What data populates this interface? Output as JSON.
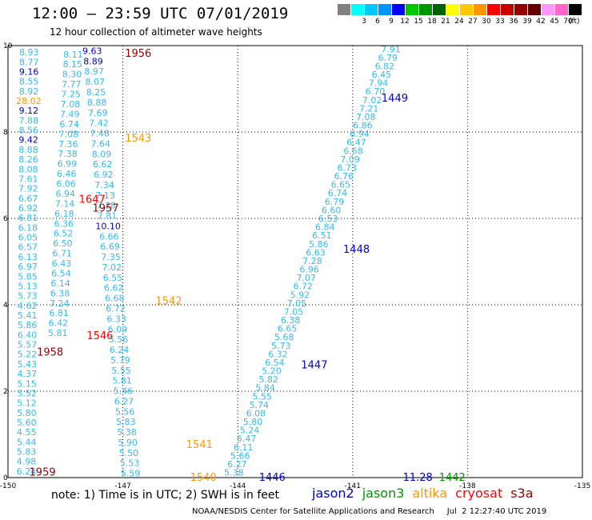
{
  "header": {
    "title": "12:00 – 23:59 UTC 07/01/2019",
    "subtitle": "12 hour collection of altimeter wave heights",
    "unit_label": "(ft)"
  },
  "color_legend": [
    {
      "label": "",
      "color": "#808080"
    },
    {
      "label": "3",
      "color": "#00ffff"
    },
    {
      "label": "6",
      "color": "#00c8ff"
    },
    {
      "label": "9",
      "color": "#0096ff"
    },
    {
      "label": "12",
      "color": "#0000ff"
    },
    {
      "label": "15",
      "color": "#00c800"
    },
    {
      "label": "18",
      "color": "#009600"
    },
    {
      "label": "21",
      "color": "#006400"
    },
    {
      "label": "24",
      "color": "#ffff00"
    },
    {
      "label": "27",
      "color": "#ffc800"
    },
    {
      "label": "30",
      "color": "#ff9600"
    },
    {
      "label": "33",
      "color": "#ff0000"
    },
    {
      "label": "36",
      "color": "#c80000"
    },
    {
      "label": "39",
      "color": "#960000"
    },
    {
      "label": "42",
      "color": "#640000"
    },
    {
      "label": "45",
      "color": "#ff96ff"
    },
    {
      "label": "70",
      "color": "#ff64c8"
    },
    {
      "label": "",
      "color": "#000000"
    }
  ],
  "footer": {
    "note": "note:  1) Time is in UTC;  2) SWH is in feet",
    "satellites": [
      {
        "name": "jason2",
        "color": "#0000cc"
      },
      {
        "name": "jason3",
        "color": "#009600"
      },
      {
        "name": "altika",
        "color": "#ff9600"
      },
      {
        "name": "cryosat",
        "color": "#ff0000"
      },
      {
        "name": "s3a",
        "color": "#960000"
      }
    ],
    "credit": "NOAA/NESDIS Center for Satellite Applications and Research     Jul  2 12:27:40 UTC 2019"
  },
  "chart_data": {
    "type": "scatter",
    "xlim": [
      -150,
      -135
    ],
    "ylim": [
      0,
      10
    ],
    "x_ticks": [
      -150,
      -147,
      -144,
      -141,
      -138,
      -135
    ],
    "y_ticks": [
      0,
      2,
      4,
      6,
      8,
      10
    ],
    "grid": true,
    "color": "#33bbee",
    "tracks": [
      {
        "name": "track-A",
        "start": [
          -149.45,
          9.85
        ],
        "end": [
          -149.52,
          0.15
        ],
        "values": [
          "8.93",
          "8.77",
          "9.16",
          "8.55",
          "8.92",
          "28.02",
          "9.12",
          "7.88",
          "8.56",
          "9.42",
          "8.88",
          "8.26",
          "8.08",
          "7.61",
          "7.92",
          "6.67",
          "6.92",
          "6.81",
          "6.18",
          "6.05",
          "6.57",
          "6.13",
          "6.97",
          "5.85",
          "5.13",
          "5.73",
          "4.62",
          "5.41",
          "5.86",
          "6.40",
          "5.57",
          "5.22",
          "5.43",
          "4.37",
          "5.15",
          "5.52",
          "5.12",
          "5.80",
          "5.60",
          "4.55",
          "5.44",
          "5.83",
          "4.98",
          "6.24"
        ],
        "special": {
          "9.16": "#0000cc",
          "28.02": "#ff9600",
          "9.12": "#0000cc",
          "9.42": "#0000cc"
        }
      },
      {
        "name": "track-B",
        "start": [
          -148.3,
          9.8
        ],
        "end": [
          -148.7,
          3.35
        ],
        "values": [
          "8.11",
          "8.15",
          "8.30",
          "7.77",
          "7.25",
          "7.08",
          "7.49",
          "6.74",
          "7.08",
          "7.36",
          "7.38",
          "6.99",
          "6.46",
          "6.06",
          "6.94",
          "7.14",
          "6.18",
          "6.36",
          "6.52",
          "6.50",
          "6.71",
          "6.43",
          "6.54",
          "6.14",
          "6.38",
          "7.24",
          "6.81",
          "6.42",
          "5.81"
        ],
        "special": {}
      },
      {
        "name": "track-C",
        "start": [
          -147.8,
          9.88
        ],
        "end": [
          -146.8,
          0.1
        ],
        "values": [
          "9.63",
          "8.89",
          "8.97",
          "8.07",
          "8.25",
          "8.88",
          "7.69",
          "7.42",
          "7.48",
          "7.64",
          "8.09",
          "6.62",
          "6.92",
          "7.34",
          "7.13",
          "7.28",
          "7.81",
          "10.10",
          "6.66",
          "6.69",
          "7.35",
          "7.02",
          "6.55",
          "6.62",
          "6.68",
          "6.72",
          "6.33",
          "6.09",
          "5.56",
          "6.24",
          "5.79",
          "5.55",
          "5.81",
          "5.46",
          "6.27",
          "5.56",
          "5.83",
          "5.38",
          "5.90",
          "5.50",
          "5.53",
          "5.59"
        ],
        "special": {
          "9.63": "#0000cc",
          "8.89": "#0000cc",
          "10.10": "#0000cc"
        }
      },
      {
        "name": "track-D",
        "start": [
          -140.0,
          9.92
        ],
        "end": [
          -144.1,
          0.12
        ],
        "values": [
          "7.91",
          "6.79",
          "6.82",
          "6.45",
          "7.94",
          "6.70",
          "7.02",
          "7.21",
          "7.08",
          "6.86",
          "6.94",
          "6.47",
          "6.68",
          "7.09",
          "6.73",
          "6.76",
          "6.65",
          "6.74",
          "6.79",
          "6.60",
          "6.53",
          "6.84",
          "6.51",
          "5.86",
          "6.63",
          "7.28",
          "6.96",
          "7.07",
          "6.72",
          "5.92",
          "7.05",
          "7.05",
          "6.38",
          "6.65",
          "5.68",
          "5.73",
          "6.32",
          "6.54",
          "5.20",
          "5.82",
          "5.84",
          "5.55",
          "5.74",
          "6.08",
          "5.80",
          "5.24",
          "6.47",
          "6.11",
          "5.66",
          "6.27",
          "5.38"
        ],
        "special": {}
      }
    ],
    "pass_labels": [
      {
        "text": "1956",
        "x": -146.6,
        "y": 9.83,
        "color": "#960000"
      },
      {
        "text": "1543",
        "x": -146.6,
        "y": 7.87,
        "color": "#ff9600"
      },
      {
        "text": "1647",
        "x": -147.8,
        "y": 6.45,
        "color": "#ff0000"
      },
      {
        "text": "1957",
        "x": -147.45,
        "y": 6.25,
        "color": "#960000"
      },
      {
        "text": "1542",
        "x": -145.8,
        "y": 4.1,
        "color": "#ff9600"
      },
      {
        "text": "1546",
        "x": -147.6,
        "y": 3.3,
        "color": "#ff0000"
      },
      {
        "text": "1958",
        "x": -148.9,
        "y": 2.92,
        "color": "#960000"
      },
      {
        "text": "1541",
        "x": -145.0,
        "y": 0.78,
        "color": "#ff9600"
      },
      {
        "text": "1540",
        "x": -144.9,
        "y": 0.02,
        "color": "#ff9600"
      },
      {
        "text": "1959",
        "x": -149.1,
        "y": 0.14,
        "color": "#960000"
      },
      {
        "text": "1449",
        "x": -139.9,
        "y": 8.8,
        "color": "#0000cc"
      },
      {
        "text": "1448",
        "x": -140.9,
        "y": 5.3,
        "color": "#0000cc"
      },
      {
        "text": "1447",
        "x": -142.0,
        "y": 2.62,
        "color": "#0000cc"
      },
      {
        "text": "1446",
        "x": -143.1,
        "y": 0.02,
        "color": "#0000cc"
      },
      {
        "text": "11.28",
        "x": -139.3,
        "y": 0.02,
        "color": "#0000cc"
      },
      {
        "text": "1442",
        "x": -138.4,
        "y": 0.02,
        "color": "#009600"
      }
    ]
  }
}
